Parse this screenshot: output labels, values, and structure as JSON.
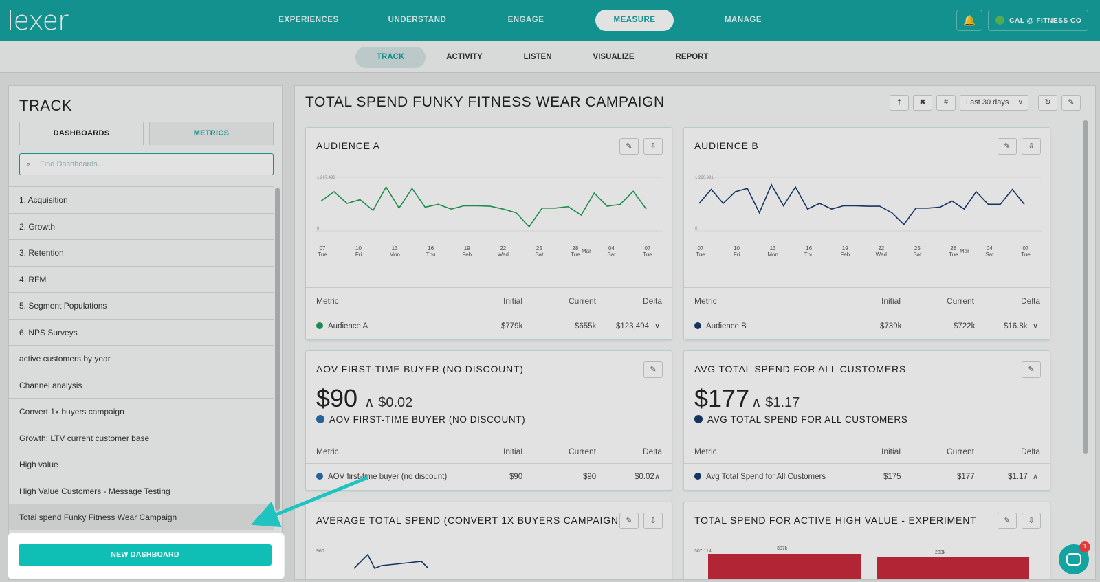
{
  "app": {
    "logo": "lexer"
  },
  "mainnav": [
    "EXPERIENCES",
    "UNDERSTAND",
    "ENGAGE",
    "MEASURE",
    "MANAGE"
  ],
  "mainnav_active": "MEASURE",
  "account": {
    "name": "CAL @ FITNESS CO"
  },
  "subnav": [
    "TRACK",
    "ACTIVITY",
    "LISTEN",
    "VISUALIZE",
    "REPORT"
  ],
  "subnav_active": "TRACK",
  "sidebar": {
    "title": "TRACK",
    "tab_dashboards": "DASHBOARDS",
    "tab_metrics": "METRICS",
    "search_placeholder": "Find Dashboards...",
    "items": [
      "1. Acquisition",
      "2. Growth",
      "3. Retention",
      "4. RFM",
      "5. Segment Populations",
      "6. NPS Surveys",
      "active customers by year",
      "Channel analysis",
      "Convert 1x buyers campaign",
      "Growth: LTV current customer base",
      "High value",
      "High Value Customers - Message Testing",
      "Total spend Funky Fitness Wear Campaign"
    ],
    "selected_index": 12,
    "new_dashboard_label": "NEW DASHBOARD"
  },
  "main": {
    "title": "TOTAL SPEND FUNKY FITNESS WEAR CAMPAIGN",
    "date_range": "Last 30 days",
    "metric_headers": {
      "metric": "Metric",
      "initial": "Initial",
      "current": "Current",
      "delta": "Delta"
    },
    "cards": {
      "audience_a": {
        "title": "AUDIENCE A",
        "ymax_label": "1,297,493",
        "ymin_label": "0",
        "row": {
          "name": "Audience A",
          "initial": "$779k",
          "current": "$655k",
          "delta": "$123,494",
          "color": "#1e9e55"
        }
      },
      "audience_b": {
        "title": "AUDIENCE B",
        "ymax_label": "1,280,991",
        "ymin_label": "0",
        "row": {
          "name": "Audience B",
          "initial": "$739k",
          "current": "$722k",
          "delta": "$16.8k",
          "color": "#163a6b"
        }
      },
      "aov": {
        "title": "AOV FIRST-TIME BUYER (NO DISCOUNT)",
        "big": "$90",
        "delta": "$0.02",
        "subtitle": "AOV FIRST-TIME BUYER (NO DISCOUNT)",
        "row": {
          "name": "AOV first-time buyer (no discount)",
          "initial": "$90",
          "current": "$90",
          "delta": "$0.02",
          "color": "#2a6fb0"
        }
      },
      "avg_total": {
        "title": "AVG TOTAL SPEND FOR ALL CUSTOMERS",
        "big": "$177",
        "delta": "$1.17",
        "subtitle": "AVG TOTAL SPEND FOR ALL CUSTOMERS",
        "row": {
          "name": "Avg Total Spend for All Customers",
          "initial": "$175",
          "current": "$177",
          "delta": "$1.17",
          "color": "#163a6b"
        }
      },
      "avg_convert": {
        "title": "AVERAGE TOTAL SPEND (CONVERT 1X BUYERS CAMPAIGN)",
        "ylabel": "960"
      },
      "active_high": {
        "title": "TOTAL SPEND FOR ACTIVE HIGH VALUE - EXPERIMENT",
        "bar1": "307k",
        "bar2": "283k",
        "ylabel": "307,114"
      }
    },
    "x_ticks": [
      {
        "d": "07",
        "w": "Tue"
      },
      {
        "d": "10",
        "w": "Fri"
      },
      {
        "d": "13",
        "w": "Mon"
      },
      {
        "d": "16",
        "w": "Thu"
      },
      {
        "d": "19",
        "w": "Feb"
      },
      {
        "d": "22",
        "w": "Wed"
      },
      {
        "d": "25",
        "w": "Sat"
      },
      {
        "d": "28",
        "w": "Tue",
        "m": "Mar"
      },
      {
        "d": "04",
        "w": "Sat"
      },
      {
        "d": "07",
        "w": "Tue"
      }
    ]
  },
  "chat": {
    "badge": "1"
  },
  "chart_data": [
    {
      "type": "line",
      "title": "AUDIENCE A",
      "series": [
        {
          "name": "Audience A",
          "values": [
            0.55,
            0.75,
            0.5,
            0.58,
            0.35,
            0.85,
            0.4,
            0.82,
            0.42,
            0.48,
            0.38,
            0.45,
            0.45,
            0.44,
            0.38,
            0.3,
            0.0,
            0.4,
            0.4,
            0.43,
            0.25,
            0.72,
            0.44,
            0.48,
            0.76,
            0.38
          ]
        }
      ],
      "color": "#1e9e55"
    },
    {
      "type": "line",
      "title": "AUDIENCE B",
      "series": [
        {
          "name": "Audience B",
          "values": [
            0.5,
            0.8,
            0.5,
            0.75,
            0.82,
            0.3,
            0.9,
            0.45,
            0.85,
            0.38,
            0.5,
            0.38,
            0.45,
            0.45,
            0.44,
            0.44,
            0.3,
            0.05,
            0.4,
            0.4,
            0.42,
            0.55,
            0.38,
            0.75,
            0.48,
            0.48,
            0.8,
            0.48
          ]
        }
      ],
      "color": "#163a6b"
    }
  ]
}
